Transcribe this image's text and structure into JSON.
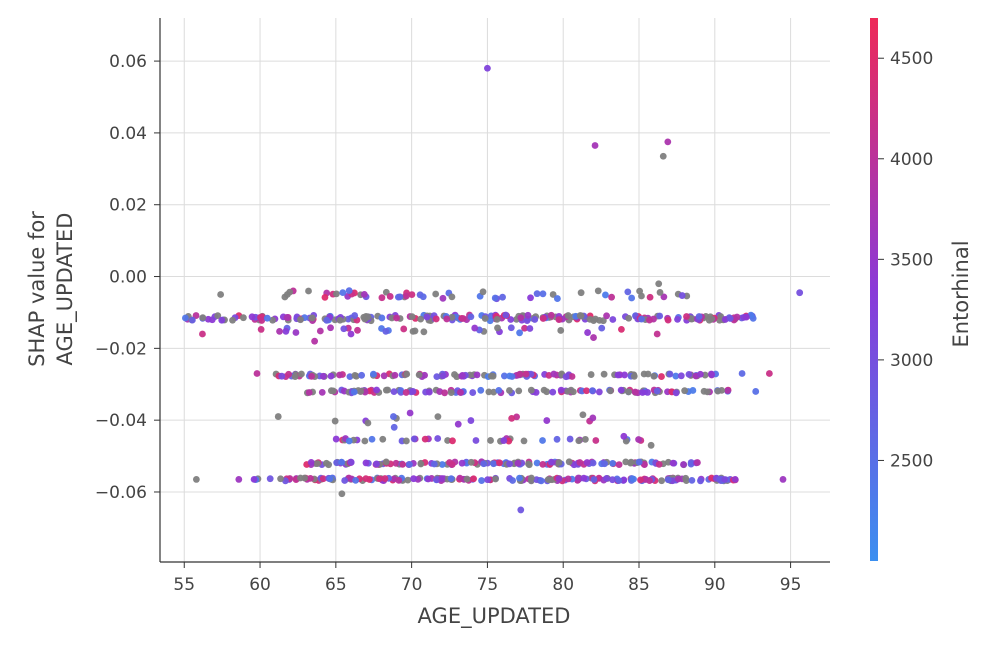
{
  "chart_data": {
    "type": "scatter",
    "xlabel": "AGE_UPDATED",
    "ylabel_lines": [
      "SHAP value for",
      "AGE_UPDATED"
    ],
    "xlim": [
      53.4,
      97.6
    ],
    "ylim": [
      -0.0795,
      0.072
    ],
    "x_ticks": [
      "55",
      "60",
      "65",
      "70",
      "75",
      "80",
      "85",
      "90",
      "95"
    ],
    "y_ticks": [
      "0.06",
      "0.04",
      "0.02",
      "0.00",
      "−0.02",
      "−0.04",
      "−0.06"
    ],
    "grid": true,
    "colorbar": {
      "label": "Entorhinal",
      "range": [
        2000,
        4700
      ],
      "ticks": [
        "2500",
        "3000",
        "3500",
        "4000",
        "4500"
      ],
      "color_low": "#3b8ff0",
      "color_mid": "#8a3ad8",
      "color_high": "#ee2a58",
      "missing_color": "#808080"
    },
    "bands": [
      {
        "y": -0.0115,
        "x_range": [
          55.0,
          92.8
        ],
        "count": 230,
        "y_jitter": 0.0008
      },
      {
        "y": -0.0275,
        "x_range": [
          61.0,
          91.0
        ],
        "count": 120,
        "y_jitter": 0.0004
      },
      {
        "y": -0.032,
        "x_range": [
          63.0,
          91.0
        ],
        "count": 120,
        "y_jitter": 0.0004
      },
      {
        "y": -0.052,
        "x_range": [
          63.0,
          89.0
        ],
        "count": 140,
        "y_jitter": 0.0004
      },
      {
        "y": -0.0565,
        "x_range": [
          59.5,
          91.5
        ],
        "count": 200,
        "y_jitter": 0.0004
      },
      {
        "y": -0.005,
        "x_range": [
          61.5,
          89.0
        ],
        "count": 55,
        "y_jitter": 0.0012
      },
      {
        "y": -0.015,
        "x_range": [
          60.0,
          84.0
        ],
        "count": 30,
        "y_jitter": 0.0008
      },
      {
        "y": -0.0455,
        "x_range": [
          63.5,
          86.0
        ],
        "count": 38,
        "y_jitter": 0.0004
      },
      {
        "y": -0.0405,
        "x_range": [
          64.0,
          82.0
        ],
        "count": 12,
        "y_jitter": 0.0015
      }
    ],
    "points": [
      {
        "x": 75.0,
        "y": 0.058,
        "c": 3200
      },
      {
        "x": 82.1,
        "y": 0.0365,
        "c": 3700
      },
      {
        "x": 86.9,
        "y": 0.0375,
        "c": 3800
      },
      {
        "x": 86.6,
        "y": 0.0335,
        "c": null
      },
      {
        "x": 95.6,
        "y": -0.0045,
        "c": 3000
      },
      {
        "x": 77.2,
        "y": -0.065,
        "c": 2900
      },
      {
        "x": 65.4,
        "y": -0.0605,
        "c": null
      },
      {
        "x": 55.8,
        "y": -0.0565,
        "c": null
      },
      {
        "x": 58.6,
        "y": -0.0565,
        "c": 3600
      },
      {
        "x": 94.5,
        "y": -0.0565,
        "c": 3600
      },
      {
        "x": 63.6,
        "y": -0.018,
        "c": 3900
      },
      {
        "x": 59.8,
        "y": -0.027,
        "c": 4000
      },
      {
        "x": 82.0,
        "y": -0.017,
        "c": 3800
      },
      {
        "x": 86.2,
        "y": -0.016,
        "c": 4100
      },
      {
        "x": 66.0,
        "y": -0.016,
        "c": 3400
      },
      {
        "x": 93.6,
        "y": -0.027,
        "c": 4200
      },
      {
        "x": 92.7,
        "y": -0.032,
        "c": 2500
      },
      {
        "x": 91.8,
        "y": -0.027,
        "c": 2600
      },
      {
        "x": 61.2,
        "y": -0.039,
        "c": null
      },
      {
        "x": 56.2,
        "y": -0.016,
        "c": 4200
      },
      {
        "x": 57.4,
        "y": -0.005,
        "c": null
      },
      {
        "x": 61.8,
        "y": -0.005,
        "c": null
      },
      {
        "x": 86.3,
        "y": -0.002,
        "c": null
      },
      {
        "x": 76.6,
        "y": -0.0395,
        "c": 4300
      },
      {
        "x": 81.3,
        "y": -0.0385,
        "c": null
      },
      {
        "x": 84.0,
        "y": -0.0445,
        "c": 3400
      },
      {
        "x": 85.8,
        "y": -0.047,
        "c": null
      },
      {
        "x": 69.9,
        "y": -0.038,
        "c": 3500
      },
      {
        "x": 68.8,
        "y": -0.039,
        "c": 2600
      }
    ]
  }
}
